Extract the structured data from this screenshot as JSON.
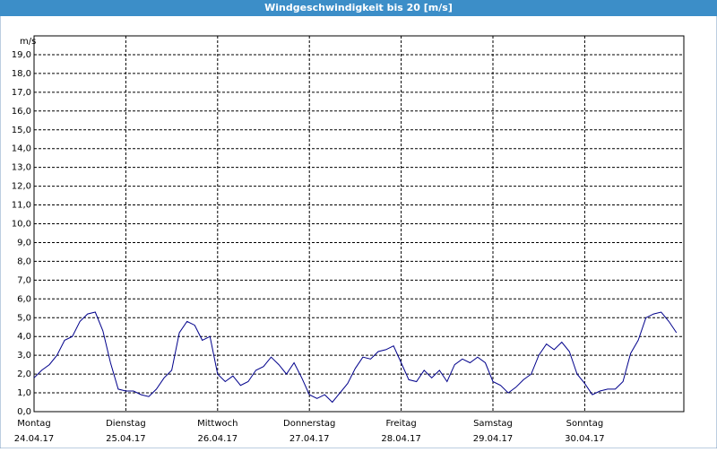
{
  "chart_data": {
    "type": "line",
    "title": "Windgeschwindigkeit bis 20 [m/s]",
    "y_unit": "m/s",
    "x_ticks": [
      {
        "day": "Montag",
        "date": "24.04.17"
      },
      {
        "day": "Dienstag",
        "date": "25.04.17"
      },
      {
        "day": "Mittwoch",
        "date": "26.04.17"
      },
      {
        "day": "Donnerstag",
        "date": "27.04.17"
      },
      {
        "day": "Freitag",
        "date": "28.04.17"
      },
      {
        "day": "Samstag",
        "date": "29.04.17"
      },
      {
        "day": "Sonntag",
        "date": "30.04.17"
      }
    ],
    "series": [
      {
        "color": "#00008b",
        "values": [
          1.8,
          2.2,
          2.5,
          3.0,
          3.8,
          4.0,
          4.8,
          5.2,
          5.3,
          4.3,
          2.6,
          1.2,
          1.1,
          1.1,
          0.9,
          0.8,
          1.2,
          1.8,
          2.2,
          4.2,
          4.8,
          4.6,
          3.8,
          4.0,
          2.0,
          1.6,
          1.9,
          1.4,
          1.6,
          2.2,
          2.4,
          2.9,
          2.5,
          2.0,
          2.6,
          1.8,
          0.9,
          0.7,
          0.9,
          0.5,
          1.0,
          1.5,
          2.3,
          2.9,
          2.8,
          3.2,
          3.3,
          3.5,
          2.6,
          1.7,
          1.6,
          2.2,
          1.8,
          2.2,
          1.6,
          2.5,
          2.8,
          2.6,
          2.9,
          2.6,
          1.6,
          1.4,
          1.0,
          1.3,
          1.7,
          2.0,
          3.0,
          3.6,
          3.3,
          3.7,
          3.2,
          2.0,
          1.5,
          0.9,
          1.1,
          1.2,
          1.2,
          1.6,
          3.1,
          3.8,
          5.0,
          5.2,
          5.3,
          4.8,
          4.2
        ]
      }
    ],
    "ylim": [
      0,
      20
    ],
    "yticks": [
      {
        "value": 0,
        "label": "0,0"
      },
      {
        "value": 1,
        "label": "1,0"
      },
      {
        "value": 2,
        "label": "2,0"
      },
      {
        "value": 3,
        "label": "3,0"
      },
      {
        "value": 4,
        "label": "4,0"
      },
      {
        "value": 5,
        "label": "5,0"
      },
      {
        "value": 6,
        "label": "6,0"
      },
      {
        "value": 7,
        "label": "7,0"
      },
      {
        "value": 8,
        "label": "8,0"
      },
      {
        "value": 9,
        "label": "9,0"
      },
      {
        "value": 10,
        "label": "10,0"
      },
      {
        "value": 11,
        "label": "11,0"
      },
      {
        "value": 12,
        "label": "12,0"
      },
      {
        "value": 13,
        "label": "13,0"
      },
      {
        "value": 14,
        "label": "14,0"
      },
      {
        "value": 15,
        "label": "15,0"
      },
      {
        "value": 16,
        "label": "16,0"
      },
      {
        "value": 17,
        "label": "17,0"
      },
      {
        "value": 18,
        "label": "18,0"
      },
      {
        "value": 19,
        "label": "19,0"
      }
    ],
    "grid": true
  }
}
